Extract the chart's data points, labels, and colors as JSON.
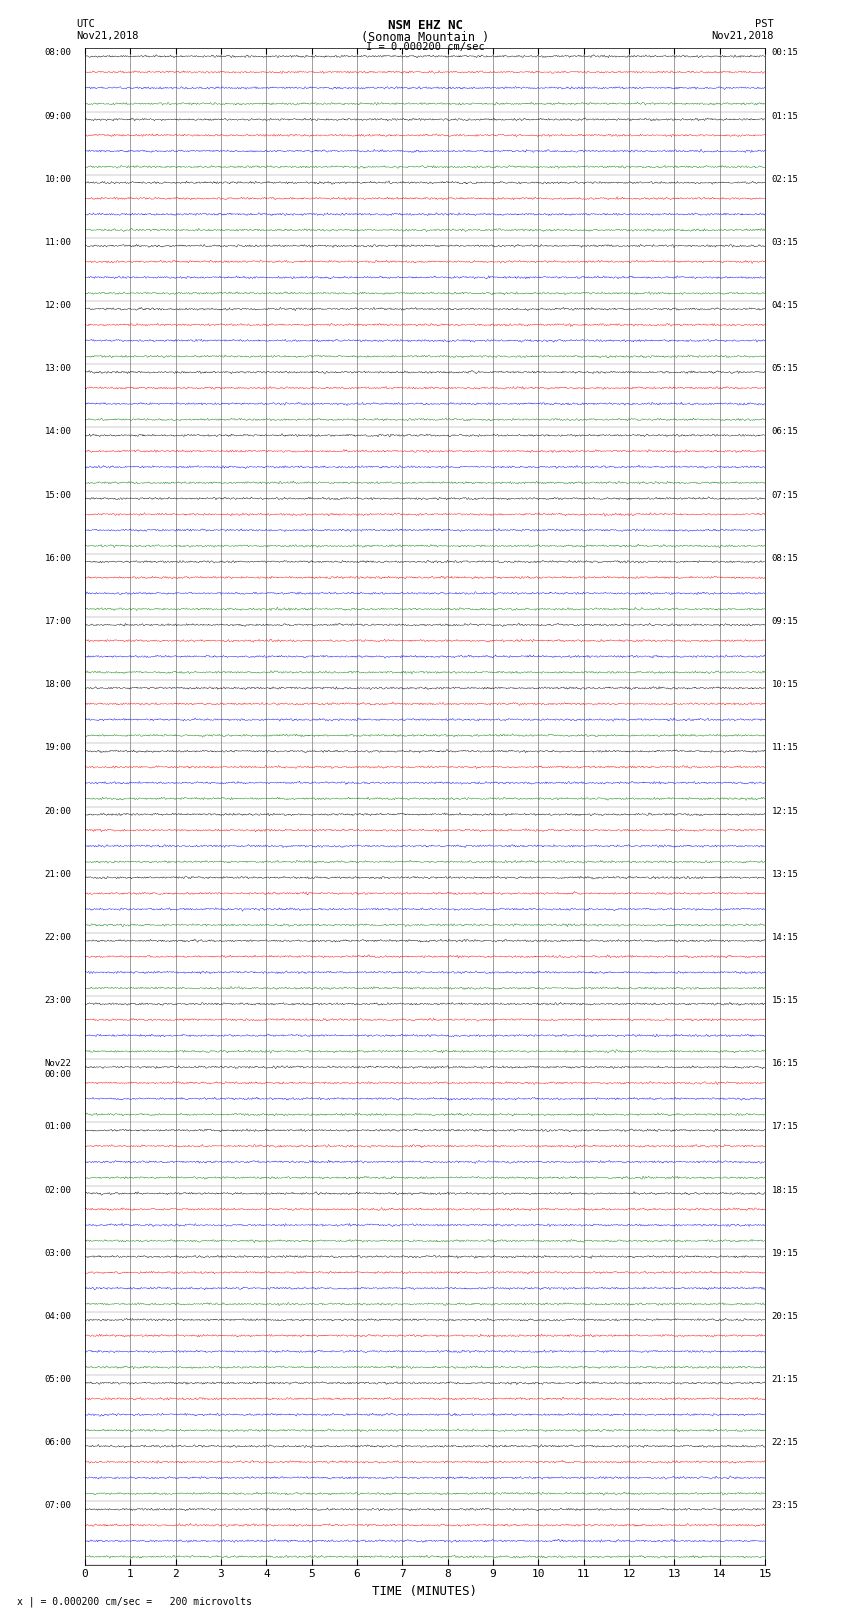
{
  "title_line1": "NSM EHZ NC",
  "title_line2": "(Sonoma Mountain )",
  "scale_label": "I = 0.000200 cm/sec",
  "left_header_line1": "UTC",
  "left_header_line2": "Nov21,2018",
  "right_header_line1": "PST",
  "right_header_line2": "Nov21,2018",
  "xlabel": "TIME (MINUTES)",
  "bottom_note": "x | = 0.000200 cm/sec =   200 microvolts",
  "xlim": [
    0,
    15
  ],
  "x_ticks": [
    0,
    1,
    2,
    3,
    4,
    5,
    6,
    7,
    8,
    9,
    10,
    11,
    12,
    13,
    14,
    15
  ],
  "utc_labels": [
    [
      "08:00",
      0
    ],
    [
      "09:00",
      1
    ],
    [
      "10:00",
      2
    ],
    [
      "11:00",
      3
    ],
    [
      "12:00",
      4
    ],
    [
      "13:00",
      5
    ],
    [
      "14:00",
      6
    ],
    [
      "15:00",
      7
    ],
    [
      "16:00",
      8
    ],
    [
      "17:00",
      9
    ],
    [
      "18:00",
      10
    ],
    [
      "19:00",
      11
    ],
    [
      "20:00",
      12
    ],
    [
      "21:00",
      13
    ],
    [
      "22:00",
      14
    ],
    [
      "23:00",
      15
    ],
    [
      "Nov22\n00:00",
      16
    ],
    [
      "01:00",
      17
    ],
    [
      "02:00",
      18
    ],
    [
      "03:00",
      19
    ],
    [
      "04:00",
      20
    ],
    [
      "05:00",
      21
    ],
    [
      "06:00",
      22
    ],
    [
      "07:00",
      23
    ]
  ],
  "pst_labels": [
    [
      "00:15",
      0
    ],
    [
      "01:15",
      1
    ],
    [
      "02:15",
      2
    ],
    [
      "03:15",
      3
    ],
    [
      "04:15",
      4
    ],
    [
      "05:15",
      5
    ],
    [
      "06:15",
      6
    ],
    [
      "07:15",
      7
    ],
    [
      "08:15",
      8
    ],
    [
      "09:15",
      9
    ],
    [
      "10:15",
      10
    ],
    [
      "11:15",
      11
    ],
    [
      "12:15",
      12
    ],
    [
      "13:15",
      13
    ],
    [
      "14:15",
      14
    ],
    [
      "15:15",
      15
    ],
    [
      "16:15",
      16
    ],
    [
      "17:15",
      17
    ],
    [
      "18:15",
      18
    ],
    [
      "19:15",
      19
    ],
    [
      "20:15",
      20
    ],
    [
      "21:15",
      21
    ],
    [
      "22:15",
      22
    ],
    [
      "23:15",
      23
    ]
  ],
  "colors": [
    "black",
    "red",
    "blue",
    "green"
  ],
  "n_groups": 24,
  "traces_per_group": 4,
  "fig_width": 8.5,
  "fig_height": 16.13,
  "bg_color": "white",
  "grid_color": "#888888",
  "trace_amplitude": 0.03,
  "noise_std": 1.0,
  "seed": 42,
  "n_points": 2000,
  "lw": 0.3
}
